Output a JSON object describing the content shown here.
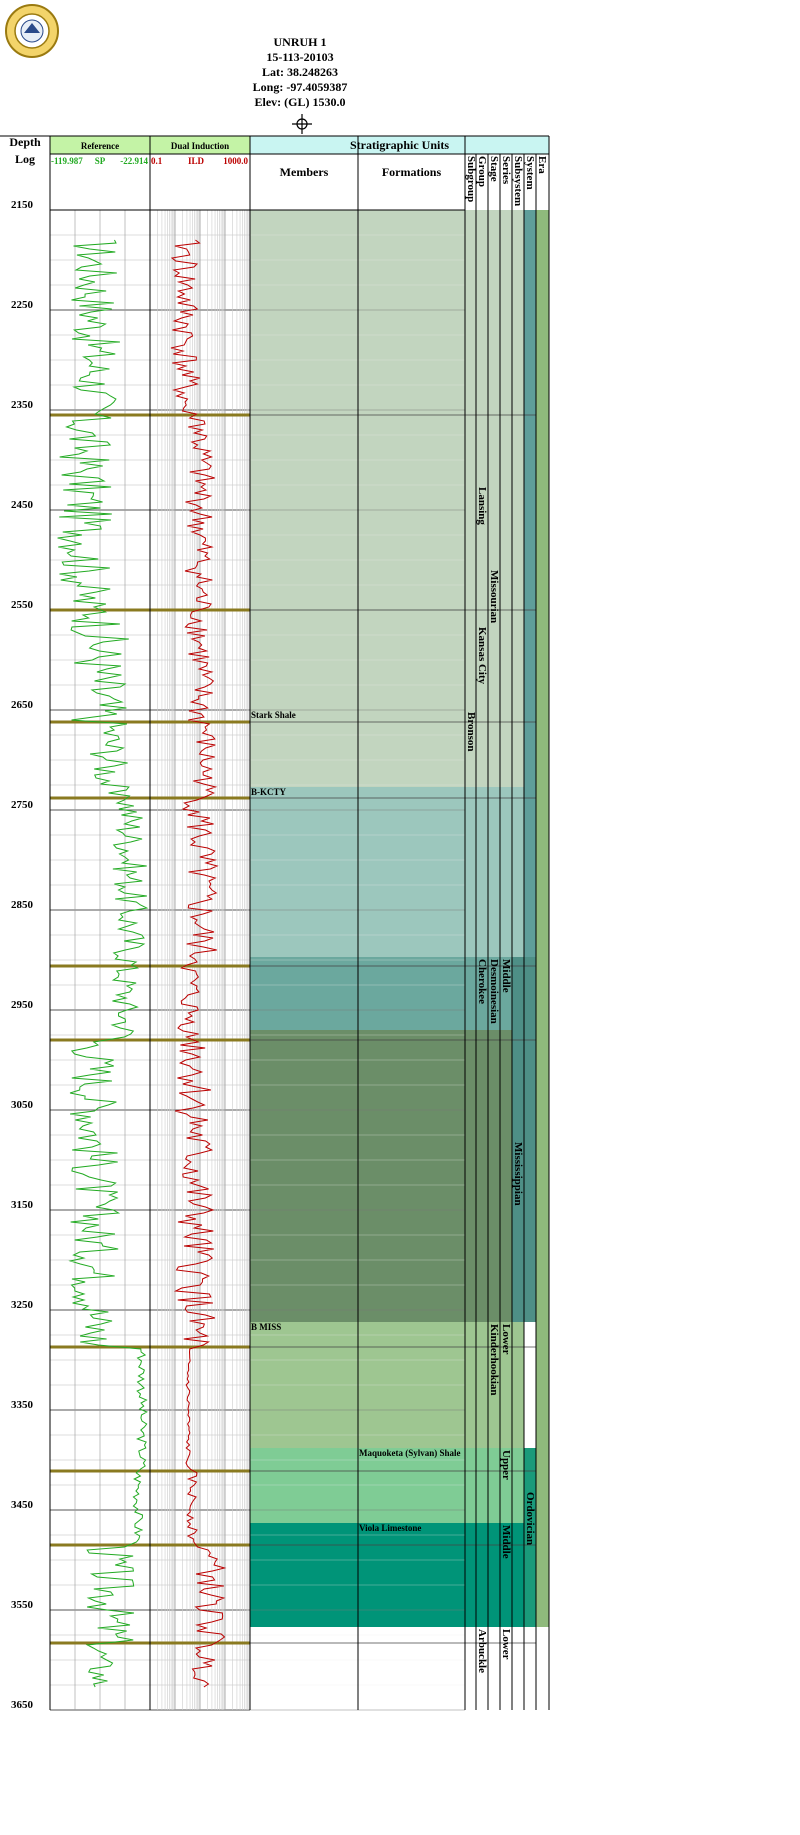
{
  "header": {
    "well_name": "UNRUH 1",
    "api": "15-113-20103",
    "lat": "Lat: 38.248263",
    "long": "Long: -97.4059387",
    "elev": "Elev: (GL) 1530.0",
    "logo_text": "KANSAS GEOLOGICAL SURVEY"
  },
  "depth": {
    "title": "Depth",
    "subtitle": "Log",
    "labels": [
      "2150",
      "2250",
      "2350",
      "2450",
      "2550",
      "2650",
      "2750",
      "2850",
      "2950",
      "3050",
      "3150",
      "3250",
      "3350",
      "3450",
      "3550",
      "3650"
    ]
  },
  "tracks": {
    "reference": {
      "title": "Reference",
      "curve": "SP",
      "min": "-119.987",
      "max": "-22.914",
      "color": "#22aa22"
    },
    "induction": {
      "title": "Dual Induction",
      "curve": "ILD",
      "min": "0.1",
      "max": "1000.0",
      "color": "#bb0000"
    }
  },
  "strat": {
    "title": "Stratigraphic Units",
    "members_header": "Members",
    "formations_header": "Formations",
    "rank_headers": [
      "Subgroup",
      "Group",
      "Stage",
      "Series",
      "Subsystem",
      "System",
      "Era"
    ],
    "members": [
      {
        "label": "Stark Shale",
        "depth": 2650
      },
      {
        "label": "B-KCTY",
        "depth": 2727
      },
      {
        "label": "B MISS",
        "depth": 3262
      }
    ],
    "formations": [
      {
        "label": "Maquoketa (Sylvan) Shale",
        "depth": 3388
      },
      {
        "label": "Viola Limestone",
        "depth": 3463
      }
    ],
    "vertical_labels": [
      {
        "label": "Bronson",
        "col": "subgroup",
        "depth": 2650
      },
      {
        "label": "Lansing",
        "col": "group",
        "depth": 2425
      },
      {
        "label": "Kansas City",
        "col": "group",
        "depth": 2565
      },
      {
        "label": "Cherokee",
        "col": "group",
        "depth": 2897
      },
      {
        "label": "Arbuckle",
        "col": "group",
        "depth": 3567
      },
      {
        "label": "Missourian",
        "col": "stage",
        "depth": 2508
      },
      {
        "label": "Desmoinesian",
        "col": "stage",
        "depth": 2897
      },
      {
        "label": "Kinderhookian",
        "col": "stage",
        "depth": 3262
      },
      {
        "label": "Middle",
        "col": "series",
        "depth": 2897
      },
      {
        "label": "Lower",
        "col": "series",
        "depth": 3262
      },
      {
        "label": "Upper",
        "col": "series",
        "depth": 3388
      },
      {
        "label": "Middle",
        "col": "series",
        "depth": 3463
      },
      {
        "label": "Lower",
        "col": "series",
        "depth": 3567
      },
      {
        "label": "Mississippian",
        "col": "subsystem",
        "depth": 3080
      },
      {
        "label": "Ordovician",
        "col": "system",
        "depth": 3430
      }
    ],
    "colors": {
      "missourian": "#c2d5bf",
      "bkcty": "#9cc7bd",
      "cherokee": "#6ba89e",
      "miss": "#6b8e68",
      "kinderhook": "#9ec691",
      "maquoketa": "#7fcc95",
      "viola": "#009478",
      "system_pennsylvanian": "#5f9e9a",
      "system_mississippian": "#4e8f86",
      "system_ordovician": "#1a9a7a",
      "era": "#8fba7c",
      "header_fill": "#c9f5f2",
      "ref_header_fill": "#c4f3a6",
      "core_line": "#8a7a20"
    }
  },
  "cores": [
    2355,
    2550,
    2662,
    2738,
    2906,
    2980,
    3287,
    3411,
    3485,
    3583
  ]
}
